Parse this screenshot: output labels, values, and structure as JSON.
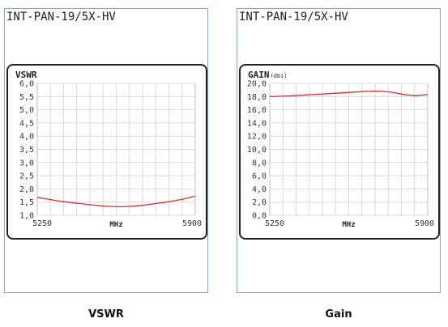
{
  "captions": [
    "VSWR",
    "Gain"
  ],
  "colors": {
    "line": "#dd2a2a",
    "grid": "#d9d9d9",
    "panel_border": "#8ea3c6",
    "frame": "#222222"
  },
  "chart_data": [
    {
      "type": "line",
      "panel_title": "INT-PAN-19/5X-HV",
      "title": "VSWR",
      "title_sub": "",
      "xlabel": "MHz",
      "x_tick_labels": [
        "5250",
        "5900"
      ],
      "xlim": [
        5250,
        5900
      ],
      "ylim": [
        1.0,
        6.0
      ],
      "y_ticks": [
        1.0,
        1.5,
        2.0,
        2.5,
        3.0,
        3.5,
        4.0,
        4.5,
        5.0,
        5.5,
        6.0
      ],
      "y_tick_labels": [
        "1,0",
        "1,5",
        "2,0",
        "2,5",
        "3,0",
        "3,5",
        "4,0",
        "4,5",
        "5,0",
        "5,5",
        "6,0"
      ],
      "grid": true,
      "series": [
        {
          "x": [
            5250,
            5300,
            5350,
            5400,
            5450,
            5500,
            5550,
            5600,
            5650,
            5700,
            5750,
            5800,
            5850,
            5900
          ],
          "y": [
            1.68,
            1.6,
            1.53,
            1.47,
            1.42,
            1.37,
            1.33,
            1.32,
            1.35,
            1.4,
            1.46,
            1.53,
            1.61,
            1.73
          ]
        }
      ]
    },
    {
      "type": "line",
      "panel_title": "INT-PAN-19/5X-HV",
      "title": "GAIN",
      "title_sub": "(dbi)",
      "xlabel": "MHz",
      "x_tick_labels": [
        "5250",
        "5900"
      ],
      "xlim": [
        5250,
        5900
      ],
      "ylim": [
        0.0,
        20.0
      ],
      "y_ticks": [
        0,
        2,
        4,
        6,
        8,
        10,
        12,
        14,
        16,
        18,
        20
      ],
      "y_tick_labels": [
        "0,0",
        "2,0",
        "4,0",
        "6,0",
        "8,0",
        "10,0",
        "12,0",
        "14,0",
        "16,0",
        "18,0",
        "20,0"
      ],
      "grid": true,
      "series": [
        {
          "x": [
            5250,
            5300,
            5350,
            5400,
            5450,
            5500,
            5550,
            5600,
            5650,
            5700,
            5750,
            5800,
            5850,
            5900
          ],
          "y": [
            18.0,
            18.05,
            18.15,
            18.25,
            18.35,
            18.45,
            18.55,
            18.7,
            18.8,
            18.85,
            18.7,
            18.3,
            18.15,
            18.3
          ]
        }
      ]
    }
  ]
}
